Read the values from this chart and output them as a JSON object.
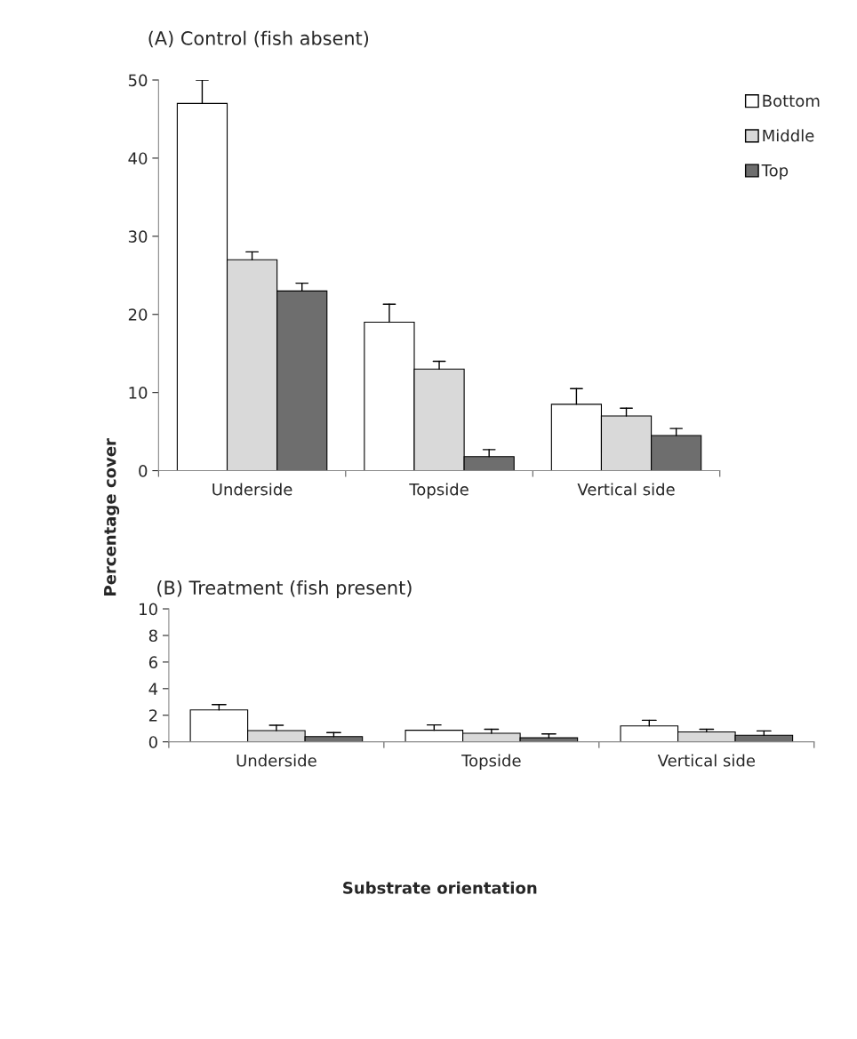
{
  "chart_data": [
    {
      "type": "bar",
      "title": "(A) Control (fish absent)",
      "ylabel": "Percentage cover",
      "categories": [
        "Underside",
        "Topside",
        "Vertical side"
      ],
      "series": [
        {
          "name": "Bottom",
          "color": "#ffffff",
          "values": [
            47,
            19,
            8.5
          ],
          "errors": [
            [
              47,
              50
            ],
            [
              19,
              21.3
            ],
            [
              8.5,
              10.5
            ]
          ]
        },
        {
          "name": "Middle",
          "color": "#d9d9d9",
          "values": [
            27,
            13,
            7
          ],
          "errors": [
            [
              27,
              28
            ],
            [
              13,
              14
            ],
            [
              7,
              8
            ]
          ]
        },
        {
          "name": "Top",
          "color": "#6e6e6e",
          "values": [
            23,
            1.8,
            4.5
          ],
          "errors": [
            [
              23,
              24
            ],
            [
              1.8,
              2.7
            ],
            [
              4.5,
              5.4
            ]
          ]
        }
      ],
      "ylim": [
        0,
        50
      ],
      "yticks": [
        0,
        10,
        20,
        30,
        40,
        50
      ],
      "grid": false,
      "legend": "top right"
    },
    {
      "type": "bar",
      "title": "(B) Treatment (fish present)",
      "xlabel": "Substrate orientation",
      "categories": [
        "Underside",
        "Topside",
        "Vertical side"
      ],
      "series": [
        {
          "color": "#ffffff",
          "values": [
            2.4,
            0.87,
            1.2
          ],
          "errors": [
            [
              2.4,
              2.8
            ],
            [
              0.87,
              1.27
            ],
            [
              1.2,
              1.62
            ]
          ]
        },
        {
          "color": "#d9d9d9",
          "values": [
            0.85,
            0.65,
            0.75
          ],
          "errors": [
            [
              0.85,
              1.25
            ],
            [
              0.65,
              0.95
            ],
            [
              0.75,
              0.95
            ]
          ]
        },
        {
          "color": "#6e6e6e",
          "values": [
            0.4,
            0.3,
            0.5
          ],
          "errors": [
            [
              0.4,
              0.7
            ],
            [
              0.3,
              0.6
            ],
            [
              0.5,
              0.82
            ]
          ]
        }
      ],
      "ylim": [
        0,
        10
      ],
      "yticks": [
        0,
        2,
        4,
        6,
        8,
        10
      ],
      "grid": false,
      "legend": false
    }
  ]
}
